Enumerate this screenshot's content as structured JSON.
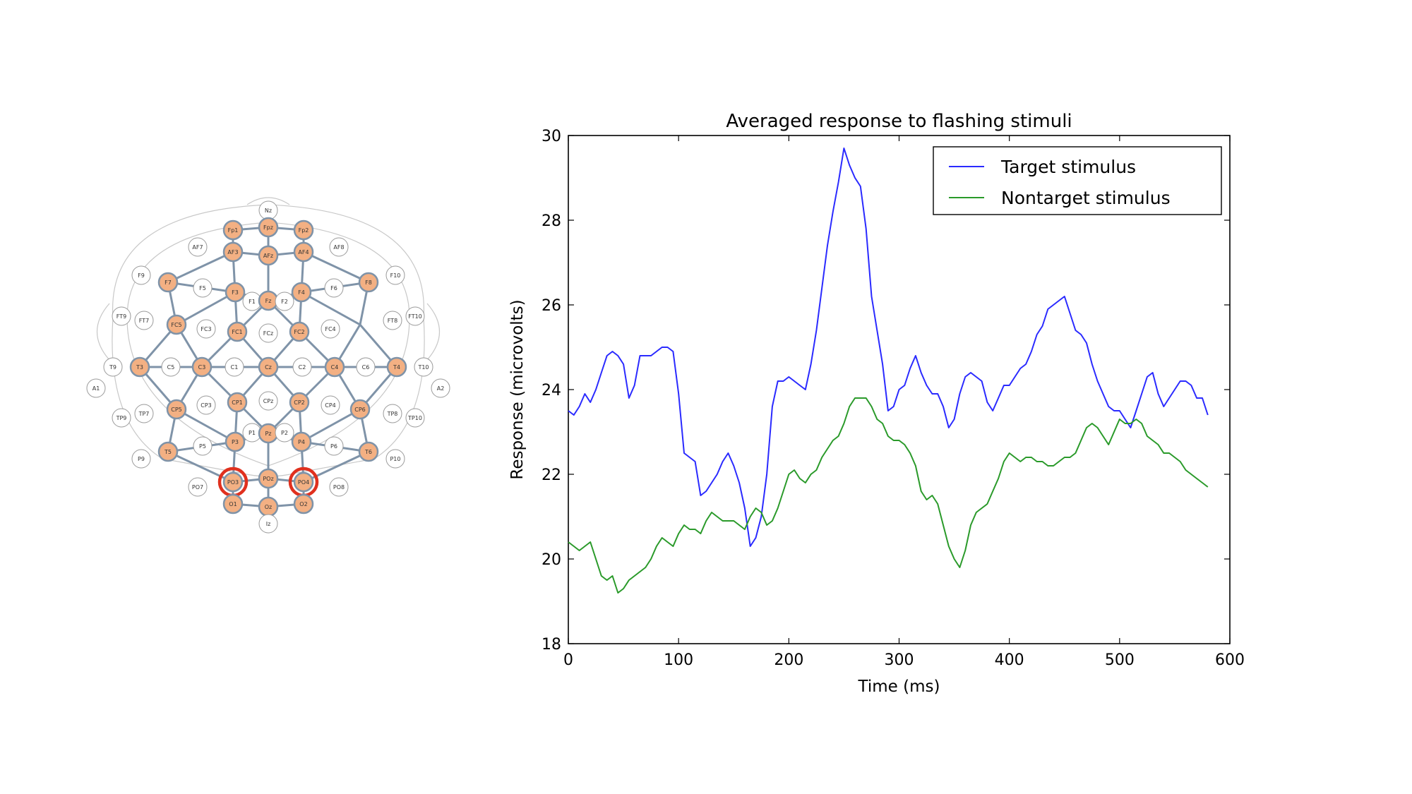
{
  "colors": {
    "target_line": "#2a2aff",
    "nontarget_line": "#2a9a2a",
    "electrode_active": "#f3b083",
    "electrode_inactive": "#ffffff",
    "electrode_highlight_ring": "#e0301e",
    "network_edge": "#7f93a8"
  },
  "eeg_map": {
    "electrodes": [
      {
        "label": "Nz",
        "active": false
      },
      {
        "label": "Fp1",
        "active": true
      },
      {
        "label": "Fpz",
        "active": true
      },
      {
        "label": "Fp2",
        "active": true
      },
      {
        "label": "AF7",
        "active": false
      },
      {
        "label": "AF3",
        "active": true
      },
      {
        "label": "AFz",
        "active": true
      },
      {
        "label": "AF4",
        "active": true
      },
      {
        "label": "AF8",
        "active": false
      },
      {
        "label": "F9",
        "active": false
      },
      {
        "label": "F7",
        "active": true
      },
      {
        "label": "F5",
        "active": false
      },
      {
        "label": "F3",
        "active": true
      },
      {
        "label": "F1",
        "active": false
      },
      {
        "label": "Fz",
        "active": true
      },
      {
        "label": "F2",
        "active": false
      },
      {
        "label": "F4",
        "active": true
      },
      {
        "label": "F6",
        "active": false
      },
      {
        "label": "F8",
        "active": true
      },
      {
        "label": "F10",
        "active": false
      },
      {
        "label": "FT9",
        "active": false
      },
      {
        "label": "FT7",
        "active": false
      },
      {
        "label": "FC5",
        "active": true
      },
      {
        "label": "FC3",
        "active": false
      },
      {
        "label": "FC1",
        "active": true
      },
      {
        "label": "FCz",
        "active": false
      },
      {
        "label": "FC2",
        "active": true
      },
      {
        "label": "FC4",
        "active": false
      },
      {
        "label": "FC6",
        "active": true
      },
      {
        "label": "FT8",
        "active": false
      },
      {
        "label": "FT10",
        "active": false
      },
      {
        "label": "A1",
        "active": false
      },
      {
        "label": "T9",
        "active": false
      },
      {
        "label": "T3",
        "active": true
      },
      {
        "label": "C5",
        "active": false
      },
      {
        "label": "C3",
        "active": true
      },
      {
        "label": "C1",
        "active": false
      },
      {
        "label": "Cz",
        "active": true
      },
      {
        "label": "C2",
        "active": false
      },
      {
        "label": "C4",
        "active": true
      },
      {
        "label": "C6",
        "active": false
      },
      {
        "label": "T4",
        "active": true
      },
      {
        "label": "T10",
        "active": false
      },
      {
        "label": "A2",
        "active": false
      },
      {
        "label": "TP9",
        "active": false
      },
      {
        "label": "TP7",
        "active": false
      },
      {
        "label": "CP5",
        "active": true
      },
      {
        "label": "CP3",
        "active": false
      },
      {
        "label": "CP1",
        "active": true
      },
      {
        "label": "CPz",
        "active": false
      },
      {
        "label": "CP2",
        "active": true
      },
      {
        "label": "CP4",
        "active": false
      },
      {
        "label": "CP6",
        "active": true
      },
      {
        "label": "TP8",
        "active": false
      },
      {
        "label": "TP10",
        "active": false
      },
      {
        "label": "P9",
        "active": false
      },
      {
        "label": "T5",
        "active": true
      },
      {
        "label": "P5",
        "active": false
      },
      {
        "label": "P3",
        "active": true
      },
      {
        "label": "P1",
        "active": false
      },
      {
        "label": "Pz",
        "active": true
      },
      {
        "label": "P2",
        "active": false
      },
      {
        "label": "P4",
        "active": true
      },
      {
        "label": "P6",
        "active": false
      },
      {
        "label": "T6",
        "active": true
      },
      {
        "label": "P10",
        "active": false
      },
      {
        "label": "PO7",
        "active": false
      },
      {
        "label": "PO3",
        "active": true,
        "highlighted": true
      },
      {
        "label": "POz",
        "active": true
      },
      {
        "label": "PO4",
        "active": true,
        "highlighted": true
      },
      {
        "label": "PO8",
        "active": false
      },
      {
        "label": "O1",
        "active": true
      },
      {
        "label": "Oz",
        "active": true
      },
      {
        "label": "O2",
        "active": true
      },
      {
        "label": "Iz",
        "active": false
      }
    ]
  },
  "chart_data": {
    "type": "line",
    "title": "Averaged response to flashing stimuli",
    "xlabel": "Time (ms)",
    "ylabel": "Response (microvolts)",
    "xlim": [
      0,
      600
    ],
    "ylim": [
      18,
      30
    ],
    "xticks": [
      0,
      100,
      200,
      300,
      400,
      500,
      600
    ],
    "yticks": [
      18,
      20,
      22,
      24,
      26,
      28,
      30
    ],
    "grid": false,
    "legend_position": "top-right",
    "series": [
      {
        "name": "Target stimulus",
        "color": "#2a2aff",
        "x": [
          0,
          5,
          10,
          15,
          20,
          25,
          30,
          35,
          40,
          45,
          50,
          55,
          60,
          65,
          70,
          75,
          80,
          85,
          90,
          95,
          100,
          105,
          110,
          115,
          120,
          125,
          130,
          135,
          140,
          145,
          150,
          155,
          160,
          165,
          170,
          175,
          180,
          185,
          190,
          195,
          200,
          205,
          210,
          215,
          220,
          225,
          230,
          235,
          240,
          245,
          250,
          255,
          260,
          265,
          270,
          275,
          280,
          285,
          290,
          295,
          300,
          305,
          310,
          315,
          320,
          325,
          330,
          335,
          340,
          345,
          350,
          355,
          360,
          365,
          370,
          375,
          380,
          385,
          390,
          395,
          400,
          405,
          410,
          415,
          420,
          425,
          430,
          435,
          440,
          445,
          450,
          455,
          460,
          465,
          470,
          475,
          480,
          485,
          490,
          495,
          500,
          505,
          510,
          515,
          520,
          525,
          530,
          535,
          540,
          545,
          550,
          555,
          560,
          565,
          570,
          575,
          580
        ],
        "y": [
          23.5,
          23.4,
          23.6,
          23.9,
          23.7,
          24.0,
          24.4,
          24.8,
          24.9,
          24.8,
          24.6,
          23.8,
          24.1,
          24.8,
          24.8,
          24.8,
          24.9,
          25.0,
          25.0,
          24.9,
          23.9,
          22.5,
          22.4,
          22.3,
          21.5,
          21.6,
          21.8,
          22.0,
          22.3,
          22.5,
          22.2,
          21.8,
          21.2,
          20.3,
          20.5,
          21.0,
          22.0,
          23.6,
          24.2,
          24.2,
          24.3,
          24.2,
          24.1,
          24.0,
          24.6,
          25.4,
          26.4,
          27.4,
          28.2,
          28.9,
          29.7,
          29.3,
          29.0,
          28.8,
          27.8,
          26.2,
          25.4,
          24.6,
          23.5,
          23.6,
          24.0,
          24.1,
          24.5,
          24.8,
          24.4,
          24.1,
          23.9,
          23.9,
          23.6,
          23.1,
          23.3,
          23.9,
          24.3,
          24.4,
          24.3,
          24.2,
          23.7,
          23.5,
          23.8,
          24.1,
          24.1,
          24.3,
          24.5,
          24.6,
          24.9,
          25.3,
          25.5,
          25.9,
          26.0,
          26.1,
          26.2,
          25.8,
          25.4,
          25.3,
          25.1,
          24.6,
          24.2,
          23.9,
          23.6,
          23.5,
          23.5,
          23.3,
          23.1,
          23.5,
          23.9,
          24.3,
          24.4,
          23.9,
          23.6,
          23.8,
          24.0,
          24.2,
          24.2,
          24.1,
          23.8,
          23.8,
          23.4
        ]
      },
      {
        "name": "Nontarget stimulus",
        "color": "#2a9a2a",
        "x": [
          0,
          5,
          10,
          15,
          20,
          25,
          30,
          35,
          40,
          45,
          50,
          55,
          60,
          65,
          70,
          75,
          80,
          85,
          90,
          95,
          100,
          105,
          110,
          115,
          120,
          125,
          130,
          135,
          140,
          145,
          150,
          155,
          160,
          165,
          170,
          175,
          180,
          185,
          190,
          195,
          200,
          205,
          210,
          215,
          220,
          225,
          230,
          235,
          240,
          245,
          250,
          255,
          260,
          265,
          270,
          275,
          280,
          285,
          290,
          295,
          300,
          305,
          310,
          315,
          320,
          325,
          330,
          335,
          340,
          345,
          350,
          355,
          360,
          365,
          370,
          375,
          380,
          385,
          390,
          395,
          400,
          405,
          410,
          415,
          420,
          425,
          430,
          435,
          440,
          445,
          450,
          455,
          460,
          465,
          470,
          475,
          480,
          485,
          490,
          495,
          500,
          505,
          510,
          515,
          520,
          525,
          530,
          535,
          540,
          545,
          550,
          555,
          560,
          565,
          570,
          575,
          580
        ],
        "y": [
          20.4,
          20.3,
          20.2,
          20.3,
          20.4,
          20.0,
          19.6,
          19.5,
          19.6,
          19.2,
          19.3,
          19.5,
          19.6,
          19.7,
          19.8,
          20.0,
          20.3,
          20.5,
          20.4,
          20.3,
          20.6,
          20.8,
          20.7,
          20.7,
          20.6,
          20.9,
          21.1,
          21.0,
          20.9,
          20.9,
          20.9,
          20.8,
          20.7,
          21.0,
          21.2,
          21.1,
          20.8,
          20.9,
          21.2,
          21.6,
          22.0,
          22.1,
          21.9,
          21.8,
          22.0,
          22.1,
          22.4,
          22.6,
          22.8,
          22.9,
          23.2,
          23.6,
          23.8,
          23.8,
          23.8,
          23.6,
          23.3,
          23.2,
          22.9,
          22.8,
          22.8,
          22.7,
          22.5,
          22.2,
          21.6,
          21.4,
          21.5,
          21.3,
          20.8,
          20.3,
          20.0,
          19.8,
          20.2,
          20.8,
          21.1,
          21.2,
          21.3,
          21.6,
          21.9,
          22.3,
          22.5,
          22.4,
          22.3,
          22.4,
          22.4,
          22.3,
          22.3,
          22.2,
          22.2,
          22.3,
          22.4,
          22.4,
          22.5,
          22.8,
          23.1,
          23.2,
          23.1,
          22.9,
          22.7,
          23.0,
          23.3,
          23.2,
          23.2,
          23.3,
          23.2,
          22.9,
          22.8,
          22.7,
          22.5,
          22.5,
          22.4,
          22.3,
          22.1,
          22.0,
          21.9,
          21.8,
          21.7
        ]
      }
    ]
  }
}
